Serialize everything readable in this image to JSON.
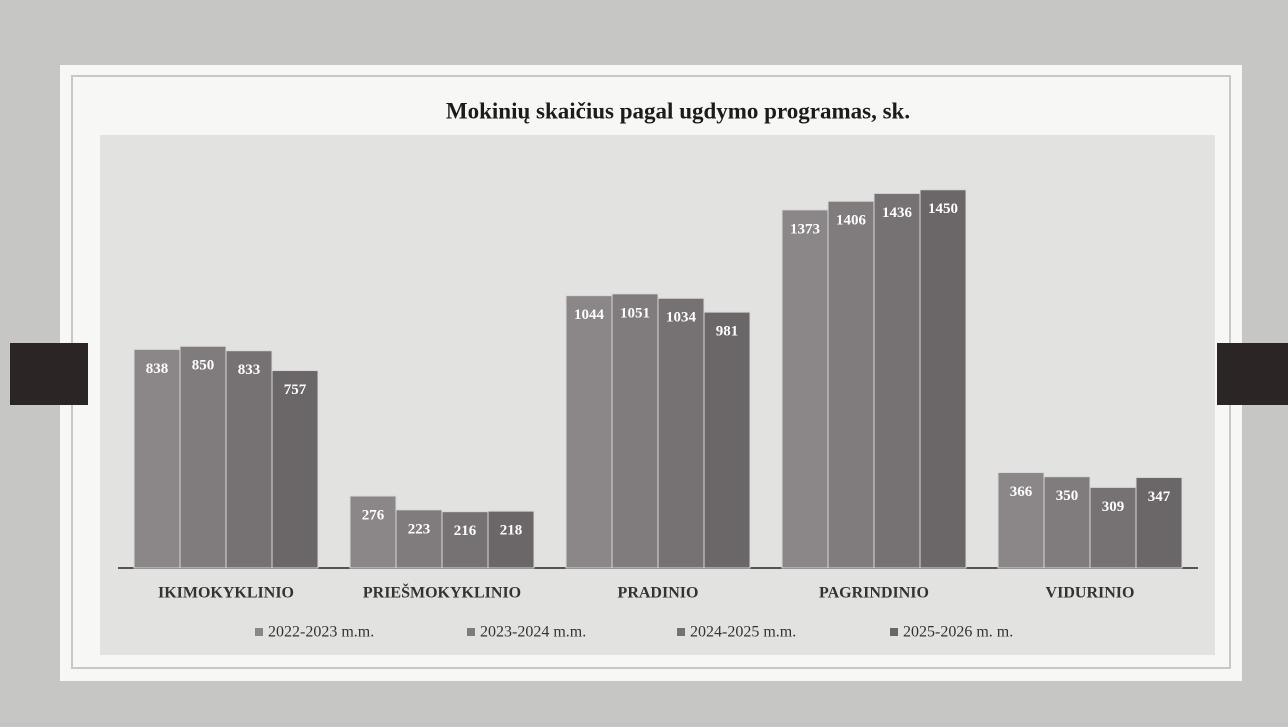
{
  "chart_data": {
    "type": "bar",
    "title": "Mokinių skaičius pagal ugdymo programas, sk.",
    "categories": [
      "IKIMOKYKLINIO",
      "PRIEŠMOKYKLINIO",
      "PRADINIO",
      "PAGRINDINIO",
      "VIDURINIO"
    ],
    "series": [
      {
        "name": "2022-2023 m.m.",
        "color": "#8b8687",
        "values": [
          838,
          276,
          1044,
          1373,
          366
        ]
      },
      {
        "name": "2023-2024 m.m.",
        "color": "#807b7d",
        "values": [
          850,
          223,
          1051,
          1406,
          350
        ]
      },
      {
        "name": "2024-2025 m.m.",
        "color": "#767173",
        "values": [
          833,
          216,
          1034,
          1436,
          309
        ]
      },
      {
        "name": "2025-2026 m. m.",
        "color": "#6b6668",
        "values": [
          757,
          218,
          981,
          1450,
          347
        ]
      }
    ],
    "ylim": [
      0,
      1660
    ],
    "legend": "bottom"
  }
}
